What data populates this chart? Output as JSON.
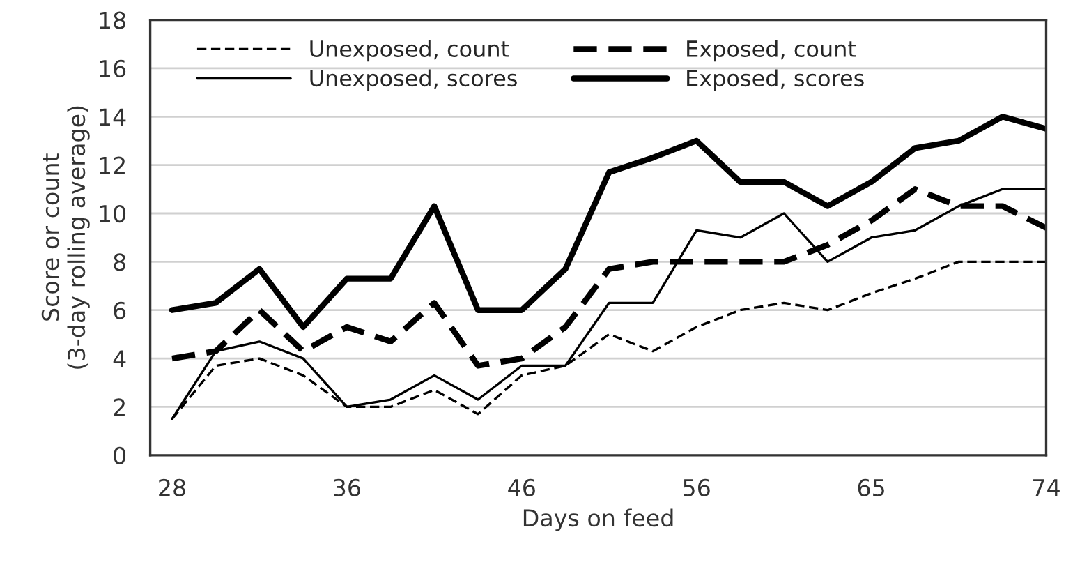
{
  "chart_data": {
    "type": "line",
    "xlabel": "Days on feed",
    "ylabel": "Score or count\n(3-day rolling average)",
    "categories": [
      "28",
      null,
      null,
      null,
      "36",
      null,
      null,
      null,
      "46",
      null,
      null,
      null,
      "56",
      null,
      null,
      null,
      "65",
      null,
      null,
      null,
      "74"
    ],
    "ylim": [
      0,
      18
    ],
    "yticks": [
      0,
      2,
      4,
      6,
      8,
      10,
      12,
      14,
      16,
      18
    ],
    "grid": "y",
    "legend": "top left",
    "marker": "none",
    "series": [
      {
        "name": "Unexposed, count",
        "color": "#000000",
        "line_style": "dashed",
        "values": [
          1.5,
          3.7,
          4,
          3.3,
          2,
          2,
          2.7,
          1.7,
          3.3,
          3.7,
          5,
          4.3,
          5.3,
          6,
          6.3,
          6,
          6.7,
          7.3,
          8,
          8,
          8
        ]
      },
      {
        "name": "Unexposed, scores",
        "color": "#000000",
        "line_style": "solid",
        "values": [
          1.5,
          4.3,
          4.7,
          4,
          2,
          2.3,
          3.3,
          2.3,
          3.7,
          3.7,
          6.3,
          6.3,
          9.3,
          9,
          10,
          8,
          9,
          9.3,
          10.3,
          11,
          11
        ]
      },
      {
        "name": "Exposed, count",
        "color": "#000000",
        "line_style": "dashed",
        "values": [
          4,
          4.3,
          6,
          4.3,
          5.3,
          4.7,
          6.3,
          3.7,
          4,
          5.3,
          7.7,
          8,
          8,
          8,
          8,
          8.7,
          9.7,
          11,
          10.3,
          10.3,
          9.4
        ]
      },
      {
        "name": "Exposed, scores",
        "color": "#000000",
        "line_style": "solid",
        "values": [
          6,
          6.3,
          7.7,
          5.3,
          7.3,
          7.3,
          10.3,
          6,
          6,
          7.7,
          11.7,
          12.3,
          13,
          11.3,
          11.3,
          10.3,
          11.3,
          12.7,
          13,
          14,
          13.5
        ]
      }
    ]
  }
}
